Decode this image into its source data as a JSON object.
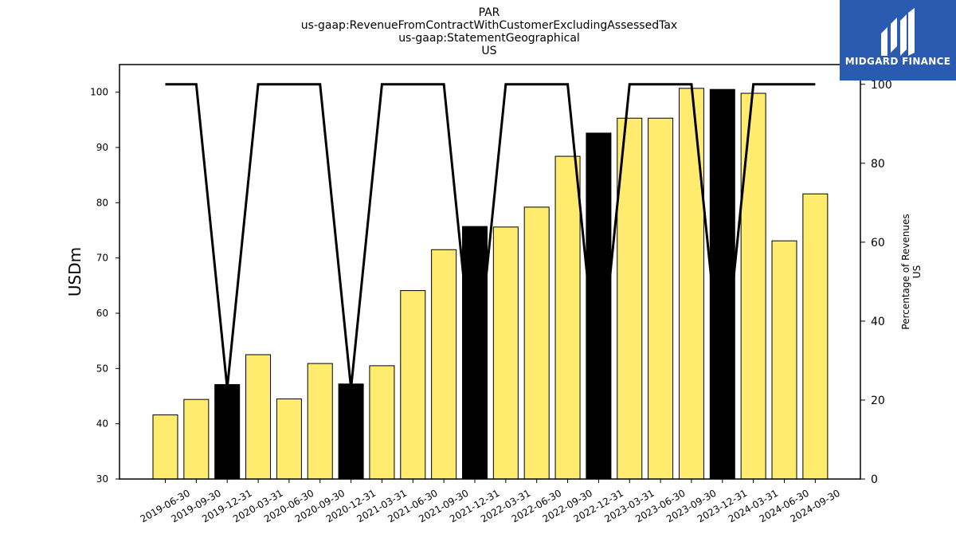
{
  "chart_data": {
    "type": "bar",
    "title_lines": [
      "PAR",
      "us-gaap:RevenueFromContractWithCustomerExcludingAssessedTax",
      "us-gaap:StatementGeographical",
      "US"
    ],
    "ylabel": "USDm",
    "ylabel_right": [
      "Percentage of Revenues",
      "US"
    ],
    "ylim": [
      30,
      105
    ],
    "ylim_right": [
      0,
      105
    ],
    "yticks": [
      30,
      40,
      50,
      60,
      70,
      80,
      90,
      100
    ],
    "yticks_right": [
      0,
      20,
      40,
      60,
      80,
      100
    ],
    "categories": [
      "2019-06-30",
      "2019-09-30",
      "2019-12-31",
      "2020-03-31",
      "2020-06-30",
      "2020-09-30",
      "2020-12-31",
      "2021-03-31",
      "2021-06-30",
      "2021-09-30",
      "2021-12-31",
      "2022-03-31",
      "2022-06-30",
      "2022-09-30",
      "2022-12-31",
      "2023-03-31",
      "2023-06-30",
      "2023-09-30",
      "2023-12-31",
      "2024-03-31",
      "2024-06-30",
      "2024-09-30"
    ],
    "values": [
      41.6,
      44.4,
      47.1,
      52.5,
      44.5,
      50.9,
      47.2,
      50.5,
      64.1,
      71.5,
      75.7,
      75.6,
      79.2,
      88.4,
      92.6,
      95.3,
      95.3,
      100.7,
      100.5,
      99.8,
      73.1,
      81.6
    ],
    "year_end": [
      false,
      false,
      true,
      false,
      false,
      false,
      true,
      false,
      false,
      false,
      true,
      false,
      false,
      false,
      true,
      false,
      false,
      false,
      true,
      false,
      false,
      false
    ],
    "percentage_series": [
      100,
      100,
      23,
      100,
      100,
      100,
      23,
      100,
      100,
      100,
      23,
      100,
      100,
      100,
      23,
      100,
      100,
      100,
      23,
      100,
      100,
      100
    ],
    "colors": {
      "bar": "#ffec6e",
      "bar_year_end": "#000000",
      "line": "#000000"
    },
    "grid": false
  },
  "logo": {
    "text": "MIDGARD FINANCE",
    "background": "#2a5bb0"
  }
}
